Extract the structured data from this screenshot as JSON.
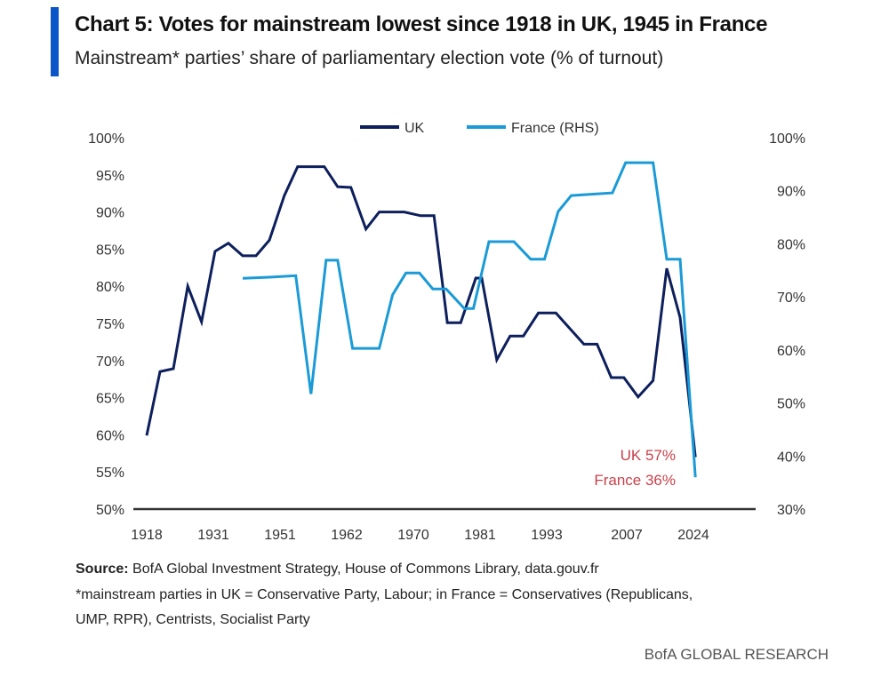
{
  "header": {
    "title": "Chart 5: Votes for mainstream lowest since 1918 in UK, 1945 in France",
    "subtitle": "Mainstream* parties’ share of parliamentary election vote (% of turnout)"
  },
  "chart_data": {
    "type": "line",
    "title": "Chart 5: Votes for mainstream lowest since 1918 in UK, 1945 in France",
    "subtitle": "Mainstream* parties’ share of parliamentary election vote (% of turnout)",
    "x_ticks": [
      "1918",
      "1931",
      "1951",
      "1962",
      "1970",
      "1981",
      "1993",
      "2007",
      "2024"
    ],
    "y_left": {
      "ticks": [
        "100%",
        "95%",
        "90%",
        "85%",
        "80%",
        "75%",
        "70%",
        "65%",
        "60%",
        "55%",
        "50%"
      ],
      "range": [
        50,
        100
      ]
    },
    "y_right": {
      "ticks": [
        "100%",
        "90%",
        "80%",
        "70%",
        "60%",
        "50%",
        "40%",
        "30%"
      ],
      "range": [
        30,
        100
      ]
    },
    "legend": {
      "placement": "top-center"
    },
    "series": [
      {
        "name": "UK",
        "axis": "left",
        "color": "#0d1f5c",
        "points": [
          [
            1918,
            59.9
          ],
          [
            1920.6,
            68.5
          ],
          [
            1923.2,
            68.9
          ],
          [
            1926,
            80.0
          ],
          [
            1928.7,
            75.2
          ],
          [
            1931.5,
            84.7
          ],
          [
            1935.5,
            85.8
          ],
          [
            1939.8,
            84.1
          ],
          [
            1943.8,
            84.1
          ],
          [
            1947.8,
            86.2
          ],
          [
            1951.7,
            92.2
          ],
          [
            1953.9,
            96.1
          ],
          [
            1958.3,
            96.1
          ],
          [
            1960.5,
            93.4
          ],
          [
            1962.5,
            93.3
          ],
          [
            1964.3,
            87.7
          ],
          [
            1965.9,
            90.0
          ],
          [
            1968.9,
            90.0
          ],
          [
            1971.2,
            89.5
          ],
          [
            1973.4,
            89.5
          ],
          [
            1975.6,
            75.1
          ],
          [
            1977.8,
            75.1
          ],
          [
            1980.3,
            81.1
          ],
          [
            1981.3,
            81.1
          ],
          [
            1984.0,
            70.1
          ],
          [
            1986.4,
            73.3
          ],
          [
            1988.8,
            73.3
          ],
          [
            1991.5,
            76.4
          ],
          [
            1994.6,
            76.4
          ],
          [
            1999.5,
            72.2
          ],
          [
            2001.8,
            72.2
          ],
          [
            2004.3,
            67.7
          ],
          [
            2006.5,
            67.7
          ],
          [
            2009.9,
            65.1
          ],
          [
            2013.7,
            67.3
          ],
          [
            2017.2,
            82.4
          ],
          [
            2020.6,
            75.8
          ],
          [
            2024.5,
            57.0
          ]
        ]
      },
      {
        "name": "France (RHS)",
        "axis": "right",
        "color": "#1a9bd7",
        "points": [
          [
            1939.8,
            73.5
          ],
          [
            1947.8,
            73.7
          ],
          [
            1953.6,
            74.0
          ],
          [
            1956.1,
            51.7
          ],
          [
            1958.6,
            76.9
          ],
          [
            1960.5,
            76.9
          ],
          [
            1962.7,
            60.3
          ],
          [
            1965.9,
            60.3
          ],
          [
            1967.5,
            70.4
          ],
          [
            1969.1,
            74.5
          ],
          [
            1971.0,
            74.5
          ],
          [
            1973.2,
            71.5
          ],
          [
            1975.4,
            71.5
          ],
          [
            1978.4,
            67.8
          ],
          [
            1979.9,
            67.8
          ],
          [
            1982.6,
            80.4
          ],
          [
            1987.1,
            80.4
          ],
          [
            1990.1,
            77.1
          ],
          [
            1992.6,
            77.1
          ],
          [
            1995.0,
            86.1
          ],
          [
            1997.3,
            89.1
          ],
          [
            2004.5,
            89.6
          ],
          [
            2006.8,
            95.3
          ],
          [
            2013.7,
            95.3
          ],
          [
            2017.2,
            77.1
          ],
          [
            2020.6,
            77.1
          ],
          [
            2024.5,
            36.0
          ]
        ]
      }
    ],
    "annotations": [
      {
        "text": "UK 57%",
        "color": "#c8404a"
      },
      {
        "text": "France 36%",
        "color": "#c8404a"
      }
    ]
  },
  "footer": {
    "source_label": "Source:",
    "source_text": " BofA Global Investment Strategy, House of Commons Library, data.gouv.fr",
    "note_line1": "*mainstream parties in UK = Conservative Party, Labour; in France = Conservatives (Republicans,",
    "note_line2": "UMP, RPR), Centrists, Socialist Party",
    "brand": "BofA GLOBAL RESEARCH"
  }
}
